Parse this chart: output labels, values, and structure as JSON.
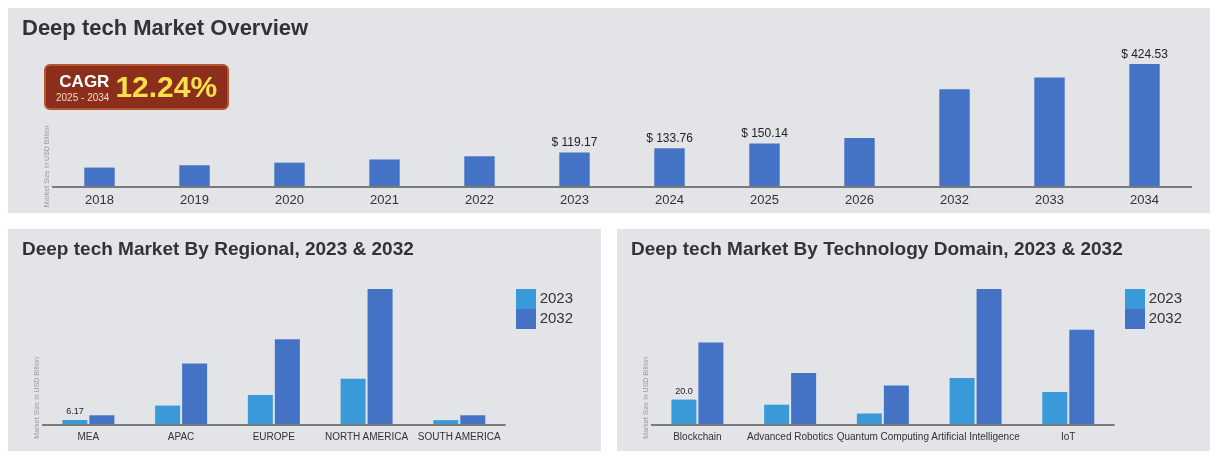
{
  "chart_data": [
    {
      "type": "bar",
      "title": "Deep tech Market Overview",
      "ylabel": "Market Size in USD Billion",
      "tick_labels": "x",
      "categories": [
        "2018",
        "2019",
        "2020",
        "2021",
        "2022",
        "2023",
        "2024",
        "2025",
        "2026",
        "2032",
        "2033",
        "2034"
      ],
      "values": [
        67,
        75,
        84,
        95,
        106,
        119.17,
        133.76,
        150.14,
        169,
        337,
        378,
        424.53
      ],
      "value_labels": [
        null,
        null,
        null,
        null,
        null,
        "$ 119.17",
        "$ 133.76",
        "$ 150.14",
        null,
        null,
        null,
        "$ 424.53"
      ],
      "color": "#4472c4",
      "annotations": [
        "CAGR",
        "2025 - 2034",
        "12.24%"
      ]
    },
    {
      "type": "bar",
      "title": "Deep tech Market By Regional, 2023 & 2032",
      "ylabel": "Market Size in USD Billion",
      "tick_labels": "x",
      "legend": "top right",
      "categories": [
        "MEA",
        "APAC",
        "EUROPE",
        "NORTH AMERICA",
        "SOUTH AMERICA"
      ],
      "series": [
        {
          "name": "2023",
          "color": "#3a9ad9",
          "values": [
            6.17,
            24,
            37,
            57,
            6
          ],
          "value_labels": [
            "6.17",
            null,
            null,
            null,
            null
          ]
        },
        {
          "name": "2032",
          "color": "#4472c4",
          "values": [
            12,
            76,
            106,
            168,
            12
          ]
        }
      ]
    },
    {
      "type": "bar",
      "title": "Deep tech Market By Technology Domain, 2023 & 2032",
      "ylabel": "Market Size in USD Billion",
      "tick_labels": "x",
      "legend": "top right",
      "categories": [
        "Blockchain",
        "Advanced Robotics",
        "Quantum Computing",
        "Artificial Intelligence",
        "IoT"
      ],
      "series": [
        {
          "name": "2023",
          "color": "#3a9ad9",
          "values": [
            20.0,
            16,
            9,
            37,
            26
          ],
          "value_labels": [
            "20.0",
            null,
            null,
            null,
            null
          ]
        },
        {
          "name": "2032",
          "color": "#4472c4",
          "values": [
            65,
            41,
            31,
            107,
            75
          ]
        }
      ]
    }
  ]
}
